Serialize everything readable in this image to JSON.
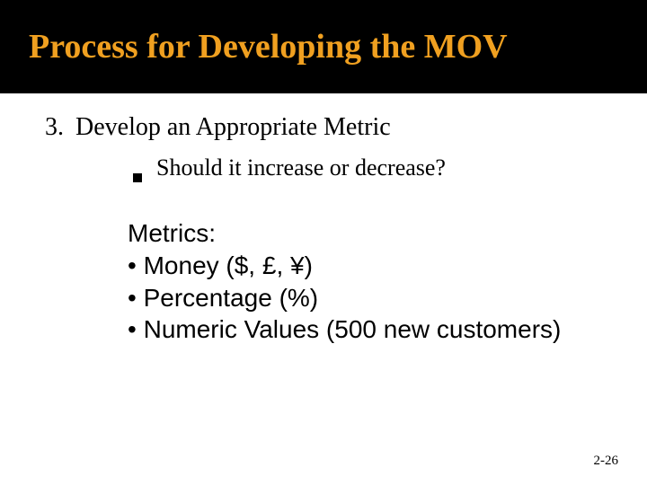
{
  "title": "Process for Developing the MOV",
  "colors": {
    "title_bg": "#000000",
    "title_fg": "#f0a020",
    "body_fg": "#000000",
    "page_bg": "#ffffff"
  },
  "typography": {
    "title_fontsize": 38,
    "body_fontsize": 28,
    "sub_fontsize": 26,
    "metrics_fontsize": 28,
    "pagenum_fontsize": 15,
    "title_family": "Georgia",
    "metrics_family": "Arial"
  },
  "list": {
    "number": "3.",
    "heading": "Develop an Appropriate Metric",
    "sub": "Should it increase or decrease?"
  },
  "metrics": {
    "heading": "Metrics:",
    "items": [
      "Money ($, £, ¥)",
      "Percentage (%)",
      "Numeric Values (500 new customers)"
    ]
  },
  "page_number": "2-26"
}
